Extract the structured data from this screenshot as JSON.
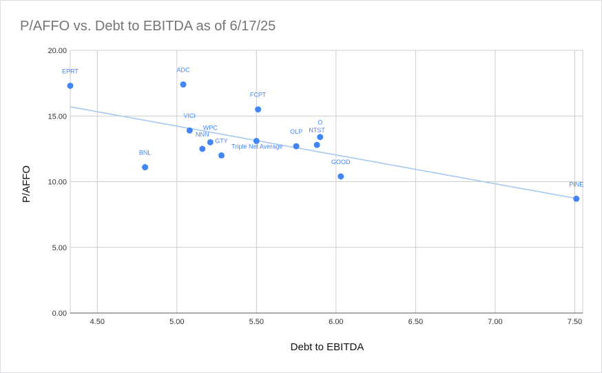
{
  "chart_data": {
    "type": "scatter",
    "title": "P/AFFO vs. Debt to EBITDA as of 6/17/25",
    "xlabel": "Debt to EBITDA",
    "ylabel": "P/AFFO",
    "xlim": [
      4.33,
      7.55
    ],
    "ylim": [
      0,
      20
    ],
    "x_ticks": [
      "4.50",
      "5.00",
      "5.50",
      "6.00",
      "6.50",
      "7.00",
      "7.50"
    ],
    "y_ticks": [
      "0.00",
      "5.00",
      "10.00",
      "15.00",
      "20.00"
    ],
    "grid": true,
    "legend": "none",
    "colors": {
      "points": "#4285f4",
      "trendline": "#a8c7f0",
      "grid": "#cccccc",
      "labels": "#4285f4"
    },
    "trendline": {
      "type": "linear",
      "x": [
        4.33,
        7.52
      ],
      "y": [
        15.7,
        8.7
      ]
    },
    "points": [
      {
        "label": "EPRT",
        "x": 4.33,
        "y": 17.3
      },
      {
        "label": "BNL",
        "x": 4.8,
        "y": 11.1
      },
      {
        "label": "ADC",
        "x": 5.04,
        "y": 17.4
      },
      {
        "label": "VICI",
        "x": 5.08,
        "y": 13.9
      },
      {
        "label": "NNN",
        "x": 5.16,
        "y": 12.5
      },
      {
        "label": "WPC",
        "x": 5.21,
        "y": 13.0
      },
      {
        "label": "GTY",
        "x": 5.28,
        "y": 12.0
      },
      {
        "label": "Triple Net Average",
        "x": 5.5,
        "y": 13.1
      },
      {
        "label": "FCPT",
        "x": 5.51,
        "y": 15.5
      },
      {
        "label": "OLP",
        "x": 5.75,
        "y": 12.7
      },
      {
        "label": "NTST",
        "x": 5.88,
        "y": 12.8
      },
      {
        "label": "O",
        "x": 5.9,
        "y": 13.4
      },
      {
        "label": "GOOD",
        "x": 6.03,
        "y": 10.4
      },
      {
        "label": "PINE",
        "x": 7.51,
        "y": 8.7
      }
    ]
  }
}
